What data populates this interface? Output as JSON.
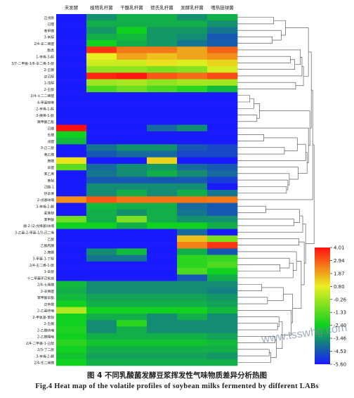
{
  "figure": {
    "caption_cn": "图 4  不同乳酸菌发酵豆浆挥发性气味物质差异分析热图",
    "caption_en": "Fig.4  Heat map of the volatile profiles of soybean milks fermented by different LABs",
    "watermark": "www.tsswhg.com"
  },
  "chart_data": {
    "type": "heatmap",
    "columns": [
      "未发酵",
      "植物乳杆菌",
      "干酪乳杆菌",
      "德氏乳杆菌",
      "发酵乳杆菌",
      "嗜热链球菌"
    ],
    "rows": [
      "正戊醇",
      "己醛",
      "苯甲醛",
      "3-辛醇",
      "2/4-辛二烯醛",
      "酯类",
      "1-辛烯-3-醇",
      "3/7-二甲基-1/6-辛二烯-3-醇",
      "2-壬酮",
      "正己醇",
      "1-戊醇",
      "2-壬醇",
      "2/4-十二二烯醛",
      "4-甲基喹啉",
      "2-辛烯-1-醇",
      "3-庚烯-1-醇",
      "庚甲酸乙酯",
      "己醛",
      "壬醛",
      "戊醛",
      "3-己二醇",
      "苯乙醛",
      "庚醛",
      "辛醛",
      "苯乙烯",
      "苯酚",
      "己酸-1",
      "环辛烯",
      "2-戊基呋喃",
      "3-辛烯-2-酮",
      "麦芽酚",
      "苯甲酸",
      "顺-2-(2-戊烯基)呋喃",
      "3-乙基-2-甲基-1/3-己二烯",
      "乙醇",
      "乙酰丙酮",
      "2-庚酮",
      "3-甲基-1-丁醇",
      "2/4-壬二烯-1-醇",
      "1-辛醇",
      "十二甲基环己氧烷",
      "2/4-七烯醛",
      "2-辛烯醛",
      "苯甲酸辛酯",
      "正辛醛",
      "2-乙基呋喃",
      "2-甲氧基-苯酚",
      "2-壬酮",
      "2-乙酰呋喃",
      "2-乙酰噻唑",
      "2/4-二甲基-1-己醇",
      "2/3-丁二醇",
      "3-辛烯-2-酮",
      "2/4-壬二烯醛"
    ],
    "values": [
      [
        -5.6,
        -3.5,
        -3.0,
        -3.0,
        -3.5,
        -3.0
      ],
      [
        -5.6,
        -3.0,
        -3.0,
        -3.0,
        -3.0,
        -3.5
      ],
      [
        -5.6,
        -3.4,
        -2.4,
        -3.4,
        -3.4,
        -4.0
      ],
      [
        -5.6,
        -3.0,
        -2.8,
        -3.4,
        -3.6,
        -4.5
      ],
      [
        -5.6,
        -2.4,
        -3.0,
        -3.4,
        -4.0,
        -4.4
      ],
      [
        -5.6,
        3.5,
        2.5,
        2.5,
        1.9,
        2.8
      ],
      [
        -5.6,
        0.8,
        1.9,
        1.5,
        1.9,
        2.2
      ],
      [
        -5.6,
        0.4,
        0.4,
        1.0,
        0.6,
        1.2
      ],
      [
        -5.6,
        -0.5,
        -0.5,
        -0.8,
        -0.6,
        0.5
      ],
      [
        -5.6,
        3.7,
        3.9,
        3.0,
        2.7,
        3.2
      ],
      [
        -5.6,
        -0.3,
        -0.1,
        -0.5,
        -0.2,
        -0.2
      ],
      [
        -5.6,
        -1.5,
        -1.0,
        -1.5,
        -2.0,
        -2.8
      ],
      [
        -5.6,
        -5.6,
        -5.6,
        -5.6,
        -5.6,
        -5.6
      ],
      [
        -5.6,
        -5.6,
        -5.6,
        -5.6,
        -5.6,
        -5.6
      ],
      [
        -5.6,
        -5.6,
        -5.6,
        -5.6,
        -5.6,
        -5.6
      ],
      [
        -5.6,
        -5.6,
        -5.6,
        -5.6,
        -5.6,
        -5.6
      ],
      [
        -5.6,
        -5.6,
        -5.6,
        -5.6,
        -5.6,
        -5.6
      ],
      [
        4.0,
        -5.6,
        -5.6,
        -4.2,
        -3.6,
        -5.6
      ],
      [
        -2.4,
        -5.6,
        -5.6,
        -5.6,
        -5.6,
        -5.6
      ],
      [
        -2.8,
        -5.6,
        -5.6,
        -5.6,
        -5.6,
        -5.6
      ],
      [
        -5.6,
        -4.0,
        -3.5,
        -3.5,
        -4.5,
        -4.8
      ],
      [
        -5.6,
        -4.5,
        -4.2,
        -4.2,
        -4.8,
        -4.8
      ],
      [
        1.0,
        -5.6,
        -5.6,
        1.2,
        -5.6,
        -5.6
      ],
      [
        -1.3,
        -4.2,
        -3.6,
        -3.4,
        -4.2,
        -4.5
      ],
      [
        -5.6,
        -4.0,
        -3.6,
        -3.0,
        -3.6,
        -4.2
      ],
      [
        -5.6,
        -4.5,
        -4.5,
        -4.5,
        -4.5,
        -5.0
      ],
      [
        -5.6,
        -3.6,
        -3.6,
        -3.6,
        -3.6,
        -5.6
      ],
      [
        -5.6,
        -3.6,
        -3.0,
        -3.6,
        -3.0,
        -4.0
      ],
      [
        2.2,
        3.0,
        2.6,
        2.6,
        2.6,
        2.5
      ],
      [
        -5.6,
        -2.8,
        -3.0,
        -3.0,
        -4.2,
        -4.5
      ],
      [
        -5.6,
        -3.0,
        -3.5,
        -3.0,
        -4.0,
        -4.5
      ],
      [
        -1.0,
        -3.0,
        -0.8,
        -3.0,
        -3.5,
        -3.5
      ],
      [
        -2.4,
        -2.4,
        -3.0,
        -2.4,
        -2.4,
        -3.0
      ],
      [
        -5.6,
        -5.6,
        -5.6,
        -5.6,
        -4.2,
        -5.6
      ],
      [
        -5.6,
        -5.6,
        -5.6,
        -5.6,
        1.5,
        -0.8
      ],
      [
        -5.6,
        -5.6,
        -5.6,
        -5.6,
        2.4,
        3.5
      ],
      [
        -5.6,
        -3.6,
        -2.8,
        -5.6,
        -3.0,
        -4.5
      ],
      [
        -5.6,
        -4.0,
        -4.0,
        -5.6,
        -2.0,
        -1.8
      ],
      [
        -5.6,
        -5.6,
        -5.6,
        -5.6,
        -2.0,
        -1.5
      ],
      [
        -5.6,
        -5.6,
        -5.6,
        -5.6,
        -1.5,
        -2.4
      ],
      [
        -5.6,
        -5.6,
        -5.6,
        -5.6,
        -4.5,
        -3.0
      ],
      [
        -2.8,
        -3.6,
        -3.6,
        -3.6,
        -3.6,
        -3.6
      ],
      [
        -3.0,
        -3.6,
        -3.6,
        -3.6,
        -3.6,
        -3.8
      ],
      [
        -2.8,
        -3.2,
        -3.2,
        -3.2,
        -3.2,
        -3.4
      ],
      [
        -2.4,
        -3.0,
        -3.0,
        -3.0,
        -3.0,
        -3.2
      ],
      [
        0.0,
        -2.4,
        -2.4,
        -2.4,
        -2.4,
        -2.8
      ],
      [
        -2.4,
        -3.0,
        -3.0,
        -3.6,
        -3.0,
        -3.6
      ],
      [
        -2.4,
        -3.6,
        -2.0,
        -3.6,
        -3.6,
        -3.6
      ],
      [
        -2.2,
        -3.6,
        -3.0,
        -3.6,
        -3.6,
        -3.6
      ],
      [
        -2.4,
        -3.0,
        -3.0,
        -3.0,
        -3.0,
        -3.2
      ],
      [
        -2.0,
        -2.6,
        -2.6,
        -2.6,
        -2.6,
        -2.8
      ],
      [
        -2.4,
        -3.0,
        -3.0,
        -3.0,
        -3.0,
        -3.0
      ],
      [
        -2.6,
        -3.2,
        -3.2,
        -3.2,
        -3.2,
        -3.4
      ],
      [
        -2.4,
        -3.0,
        -3.0,
        -3.0,
        -3.0,
        -3.0
      ]
    ],
    "colorbar": {
      "ticks": [
        4.01,
        2.94,
        1.87,
        0.8,
        -0.26,
        -1.33,
        -2.4,
        -3.46,
        -4.53,
        -5.6
      ],
      "tick_labels": [
        "4.01",
        "2.94",
        "1.87",
        "0.80",
        "-0.26",
        "-1.33",
        "-2.40",
        "-3.46",
        "-4.53",
        "-5.60"
      ],
      "range": [
        -5.6,
        4.01
      ],
      "colors": [
        "#1a1aff",
        "#10d020",
        "#e8f020",
        "#ff1010"
      ],
      "placement": "right"
    },
    "dendrogram": "right"
  }
}
